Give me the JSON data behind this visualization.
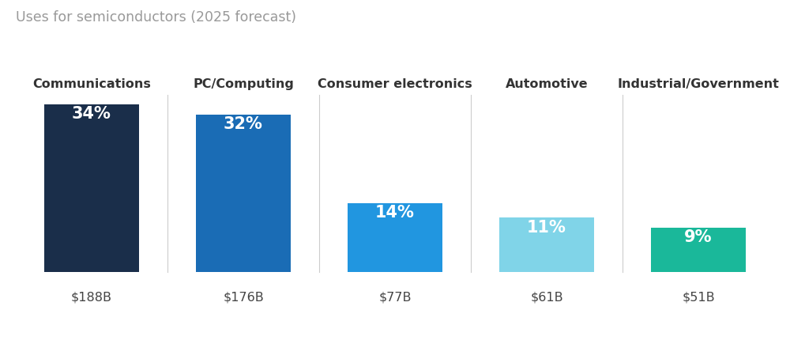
{
  "title": "Uses for semiconductors (2025 forecast)",
  "categories": [
    "Communications",
    "PC/Computing",
    "Consumer electronics",
    "Automotive",
    "Industrial/Government"
  ],
  "values": [
    34,
    32,
    14,
    11,
    9
  ],
  "dollar_labels": [
    "$188B",
    "$176B",
    "$77B",
    "$61B",
    "$51B"
  ],
  "pct_labels": [
    "34%",
    "32%",
    "14%",
    "11%",
    "9%"
  ],
  "bar_colors": [
    "#1a2e4a",
    "#1a6cb5",
    "#2196e0",
    "#80d4e8",
    "#1ab89a"
  ],
  "background_color": "#ffffff",
  "title_color": "#999999",
  "category_color": "#333333",
  "dollar_color": "#444444",
  "pct_text_color": "#ffffff",
  "separator_color": "#cccccc",
  "bar_width": 0.62,
  "ylim": [
    0,
    36
  ],
  "title_fontsize": 12.5,
  "category_fontsize": 11.5,
  "pct_fontsize": 15,
  "dollar_fontsize": 11.5
}
